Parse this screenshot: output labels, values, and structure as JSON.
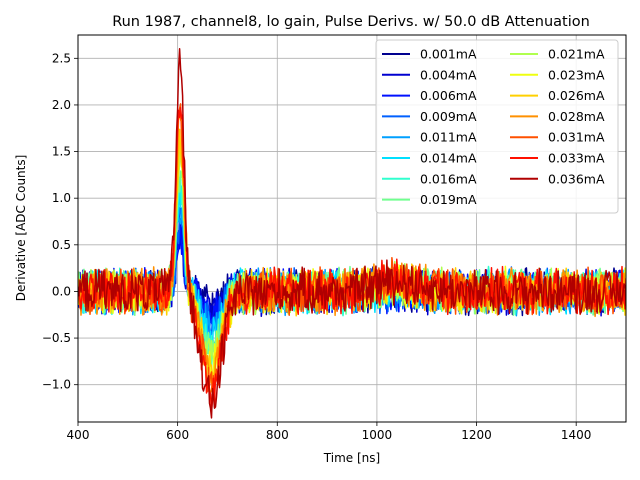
{
  "chart_data": {
    "type": "line",
    "title": "Run 1987, channel8, lo gain, Pulse Derivs. w/ 50.0 dB Attenuation",
    "xlabel": "Time [ns]",
    "ylabel": "Derivative [ADC Counts]",
    "xlim": [
      400,
      1500
    ],
    "ylim": [
      -1.4,
      2.75
    ],
    "xticks": [
      400,
      600,
      800,
      1000,
      1200,
      1400
    ],
    "yticks": [
      -1.0,
      -0.5,
      0.0,
      0.5,
      1.0,
      1.5,
      2.0,
      2.5
    ],
    "xtick_labels": [
      "400",
      "600",
      "800",
      "1000",
      "1200",
      "1400"
    ],
    "ytick_labels": [
      "−1.0",
      "−0.5",
      "0.0",
      "0.5",
      "1.0",
      "1.5",
      "2.0",
      "2.5"
    ],
    "grid": true,
    "legend_position": "upper-right",
    "legend_columns": 2,
    "series": [
      {
        "name": "0.001mA",
        "color": "#00008f",
        "peak": 0.55,
        "trough": -0.12
      },
      {
        "name": "0.004mA",
        "color": "#0000d0",
        "peak": 0.5,
        "trough": -0.22
      },
      {
        "name": "0.006mA",
        "color": "#0010ff",
        "peak": 0.55,
        "trough": -0.3
      },
      {
        "name": "0.009mA",
        "color": "#0060ff",
        "peak": 0.7,
        "trough": -0.38
      },
      {
        "name": "0.011mA",
        "color": "#00a0ff",
        "peak": 0.85,
        "trough": -0.45
      },
      {
        "name": "0.014mA",
        "color": "#00e0ff",
        "peak": 1.0,
        "trough": -0.52
      },
      {
        "name": "0.016mA",
        "color": "#30ffcf",
        "peak": 1.15,
        "trough": -0.58
      },
      {
        "name": "0.019mA",
        "color": "#70ff8f",
        "peak": 1.3,
        "trough": -0.65
      },
      {
        "name": "0.021mA",
        "color": "#b0ff4f",
        "peak": 1.45,
        "trough": -0.72
      },
      {
        "name": "0.023mA",
        "color": "#efff10",
        "peak": 1.55,
        "trough": -0.78
      },
      {
        "name": "0.026mA",
        "color": "#ffd000",
        "peak": 1.65,
        "trough": -0.85
      },
      {
        "name": "0.028mA",
        "color": "#ff9000",
        "peak": 1.8,
        "trough": -0.92
      },
      {
        "name": "0.031mA",
        "color": "#ff5000",
        "peak": 1.95,
        "trough": -1.0
      },
      {
        "name": "0.033mA",
        "color": "#ff1000",
        "peak": 2.1,
        "trough": -1.1
      },
      {
        "name": "0.036mA",
        "color": "#b00000",
        "peak": 2.55,
        "trough": -1.2
      }
    ]
  }
}
